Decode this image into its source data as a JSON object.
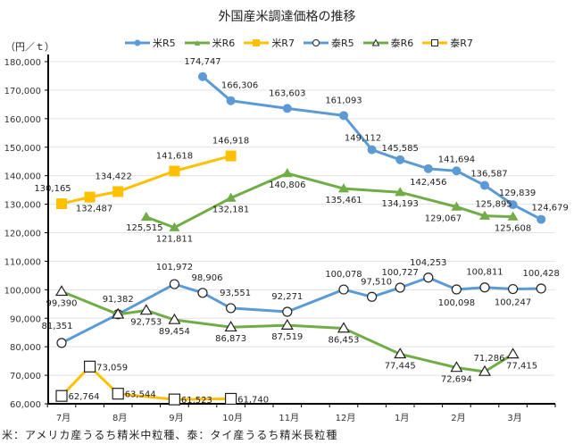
{
  "chart_data": {
    "type": "line",
    "title": "外国産米調達価格の推移",
    "ylabel": "（円／ｔ）",
    "xlabel": "",
    "ylim": [
      60000,
      180000
    ],
    "ytick_step": 10000,
    "y_ticks": [
      "60,000",
      "70,000",
      "80,000",
      "90,000",
      "100,000",
      "110,000",
      "120,000",
      "130,000",
      "140,000",
      "150,000",
      "160,000",
      "170,000",
      "180,000"
    ],
    "x_slots": 18,
    "categories": [
      "7月",
      "8月",
      "9月",
      "10月",
      "11月",
      "12月",
      "1月",
      "2月",
      "3月"
    ],
    "grid": true,
    "legend_position": "top",
    "footnote": "米：アメリカ産うるち精米中粒種、泰：タイ産うるち精米長粒種",
    "series": [
      {
        "name": "米R5",
        "color": "#5B9BD5",
        "marker": "circle-filled",
        "points": [
          [
            5,
            174747
          ],
          [
            6,
            166306
          ],
          [
            8,
            163603
          ],
          [
            10,
            161093
          ],
          [
            11,
            149112
          ],
          [
            12,
            145585
          ],
          [
            13,
            142456
          ],
          [
            14,
            141694
          ],
          [
            15,
            136587
          ],
          [
            16,
            129839
          ],
          [
            17,
            124679
          ]
        ],
        "labels": [
          "174,747",
          "166,306",
          "163,603",
          "161,093",
          "149,112",
          "145,585",
          "142,456",
          "141,694",
          "136,587",
          "129,839",
          "124,679"
        ]
      },
      {
        "name": "米R6",
        "color": "#70AD47",
        "marker": "triangle-filled",
        "points": [
          [
            3,
            125515
          ],
          [
            4,
            121811
          ],
          [
            6,
            132181
          ],
          [
            8,
            140806
          ],
          [
            10,
            135461
          ],
          [
            12,
            134193
          ],
          [
            14,
            129067
          ],
          [
            15,
            125895
          ],
          [
            16,
            125608
          ]
        ],
        "labels": [
          "125,515",
          "121,811",
          "132,181",
          "140,806",
          "135,461",
          "134,193",
          "129,067",
          "125,895",
          "125,608"
        ]
      },
      {
        "name": "米R7",
        "color": "#FFC000",
        "marker": "square-filled",
        "points": [
          [
            0,
            130165
          ],
          [
            1,
            132487
          ],
          [
            2,
            134422
          ],
          [
            4,
            141618
          ],
          [
            6,
            146918
          ]
        ],
        "labels": [
          "130,165",
          "132,487",
          "134,422",
          "141,618",
          "146,918"
        ]
      },
      {
        "name": "泰R5",
        "color": "#5B9BD5",
        "marker": "circle-open",
        "points": [
          [
            0,
            81351
          ],
          [
            2,
            91382
          ],
          [
            4,
            101972
          ],
          [
            5,
            98906
          ],
          [
            6,
            93551
          ],
          [
            8,
            92271
          ],
          [
            10,
            100078
          ],
          [
            11,
            97510
          ],
          [
            12,
            100727
          ],
          [
            13,
            104253
          ],
          [
            14,
            100098
          ],
          [
            15,
            100811
          ],
          [
            16,
            100247
          ],
          [
            17,
            100428
          ]
        ],
        "labels": [
          "81,351",
          "91,382",
          "101,972",
          "98,906",
          "93,551",
          "92,271",
          "100,078",
          "97,510",
          "100,727",
          "104,253",
          "100,098",
          "100,811",
          "100,247",
          "100,428"
        ]
      },
      {
        "name": "泰R6",
        "color": "#70AD47",
        "marker": "triangle-open",
        "points": [
          [
            0,
            99390
          ],
          [
            2,
            91382
          ],
          [
            3,
            92753
          ],
          [
            4,
            89454
          ],
          [
            6,
            86873
          ],
          [
            8,
            87519
          ],
          [
            10,
            86453
          ],
          [
            12,
            77445
          ],
          [
            14,
            72694
          ],
          [
            15,
            71286
          ],
          [
            16,
            77415
          ]
        ],
        "labels": [
          "99,390",
          "",
          "92,753",
          "89,454",
          "86,873",
          "87,519",
          "86,453",
          "77,445",
          "72,694",
          "71,286",
          "77,415"
        ]
      },
      {
        "name": "泰R7",
        "color": "#FFC000",
        "marker": "square-open",
        "points": [
          [
            0,
            62764
          ],
          [
            1,
            73059
          ],
          [
            2,
            63544
          ],
          [
            4,
            61523
          ],
          [
            6,
            61740
          ]
        ],
        "labels": [
          "62,764",
          "73,059",
          "63,544",
          "61,523",
          "61,740"
        ]
      }
    ]
  }
}
